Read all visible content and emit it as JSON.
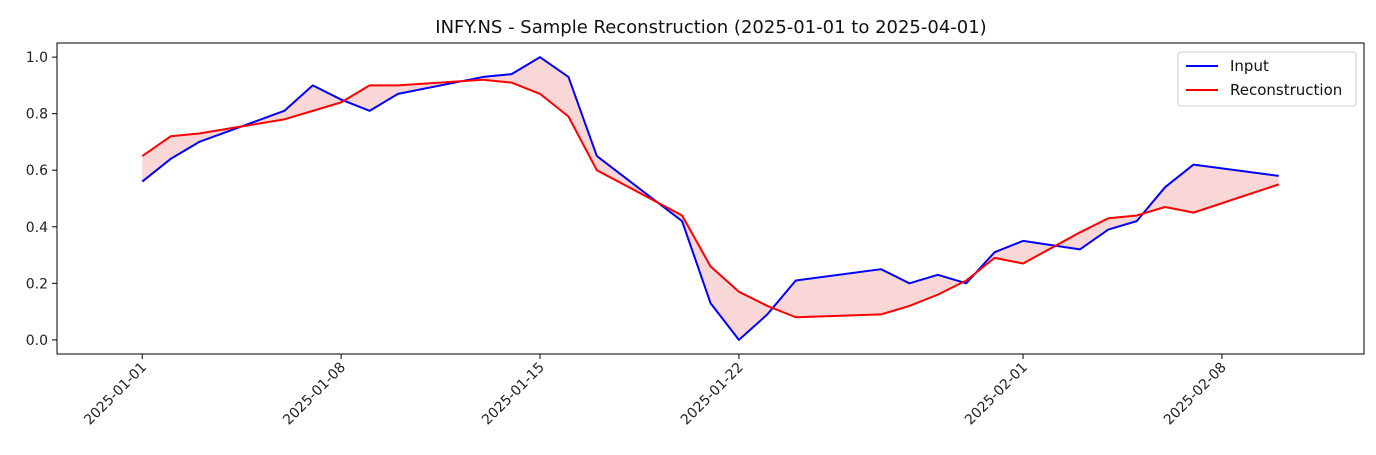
{
  "chart_data": {
    "type": "line",
    "title": "INFY.NS - Sample Reconstruction (2025-01-01 to 2025-04-01)",
    "xlabel": "",
    "ylabel": "",
    "x": [
      "2025-01-01",
      "2025-01-02",
      "2025-01-03",
      "2025-01-06",
      "2025-01-07",
      "2025-01-08",
      "2025-01-09",
      "2025-01-10",
      "2025-01-13",
      "2025-01-14",
      "2025-01-15",
      "2025-01-16",
      "2025-01-17",
      "2025-01-20",
      "2025-01-21",
      "2025-01-22",
      "2025-01-23",
      "2025-01-24",
      "2025-01-27",
      "2025-01-28",
      "2025-01-29",
      "2025-01-30",
      "2025-01-31",
      "2025-02-01",
      "2025-02-03",
      "2025-02-04",
      "2025-02-05",
      "2025-02-06",
      "2025-02-07",
      "2025-02-10"
    ],
    "series": [
      {
        "name": "Input",
        "color": "#0000ff",
        "values": [
          0.56,
          0.64,
          0.7,
          0.81,
          0.9,
          0.85,
          0.81,
          0.87,
          0.93,
          0.94,
          1.0,
          0.93,
          0.65,
          0.42,
          0.13,
          0.0,
          0.09,
          0.21,
          0.25,
          0.2,
          0.23,
          0.2,
          0.31,
          0.35,
          0.32,
          0.39,
          0.42,
          0.54,
          0.62,
          0.58
        ]
      },
      {
        "name": "Reconstruction",
        "color": "#ff0000",
        "values": [
          0.65,
          0.72,
          0.73,
          0.78,
          0.81,
          0.84,
          0.9,
          0.9,
          0.92,
          0.91,
          0.87,
          0.79,
          0.6,
          0.44,
          0.26,
          0.17,
          0.12,
          0.08,
          0.09,
          0.12,
          0.16,
          0.21,
          0.29,
          0.27,
          0.38,
          0.43,
          0.44,
          0.47,
          0.45,
          0.55
        ]
      }
    ],
    "fill_between": {
      "color": "#f4b6b6"
    },
    "xticks": [
      "2025-01-01",
      "2025-01-08",
      "2025-01-15",
      "2025-01-22",
      "2025-02-01",
      "2025-02-08"
    ],
    "yticks": [
      0.0,
      0.2,
      0.4,
      0.6,
      0.8,
      1.0
    ],
    "ylim": [
      -0.05,
      1.05
    ],
    "xlim": [
      "2024-12-29",
      "2025-02-13"
    ],
    "grid": false,
    "legend": "top-right"
  }
}
